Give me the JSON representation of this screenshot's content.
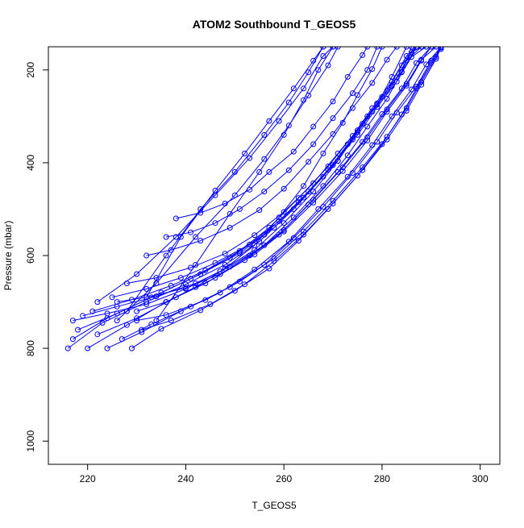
{
  "chart_data": {
    "type": "line",
    "title": "ATOM2 Southbound T_GEOS5",
    "xlabel": "T_GEOS5",
    "ylabel": "Pressure (mbar)",
    "xlim": [
      212,
      304
    ],
    "ylim": [
      1050,
      150
    ],
    "y_reversed": true,
    "x_ticks": [
      220,
      240,
      260,
      280,
      300
    ],
    "y_ticks": [
      200,
      400,
      600,
      800,
      1000
    ],
    "marker": "open-circle",
    "color": "#0000ff",
    "grid": false,
    "legend": "none",
    "series": [
      {
        "points": [
          [
            216,
            800
          ],
          [
            223,
            745
          ],
          [
            232,
            700
          ],
          [
            240,
            662
          ],
          [
            248,
            620
          ],
          [
            255,
            570
          ],
          [
            262,
            500
          ],
          [
            268,
            430
          ],
          [
            273,
            360
          ],
          [
            277,
            300
          ],
          [
            281,
            245
          ],
          [
            284,
            190
          ],
          [
            287,
            150
          ]
        ]
      },
      {
        "points": [
          [
            217,
            780
          ],
          [
            224,
            735
          ],
          [
            233,
            690
          ],
          [
            241,
            650
          ],
          [
            249,
            605
          ],
          [
            256,
            555
          ],
          [
            263,
            485
          ],
          [
            269,
            415
          ],
          [
            274,
            350
          ],
          [
            278,
            290
          ],
          [
            282,
            235
          ],
          [
            285,
            180
          ],
          [
            288,
            150
          ]
        ]
      },
      {
        "points": [
          [
            218,
            760
          ],
          [
            226,
            725
          ],
          [
            235,
            680
          ],
          [
            243,
            640
          ],
          [
            251,
            595
          ],
          [
            258,
            540
          ],
          [
            264,
            475
          ],
          [
            270,
            405
          ],
          [
            275,
            340
          ],
          [
            279,
            280
          ],
          [
            283,
            225
          ],
          [
            286,
            172
          ],
          [
            289,
            150
          ]
        ]
      },
      {
        "points": [
          [
            220,
            800
          ],
          [
            228,
            750
          ],
          [
            236,
            700
          ],
          [
            244,
            660
          ],
          [
            252,
            610
          ],
          [
            259,
            555
          ],
          [
            265,
            490
          ],
          [
            271,
            420
          ],
          [
            276,
            355
          ],
          [
            280,
            295
          ],
          [
            284,
            240
          ],
          [
            287,
            185
          ],
          [
            290,
            150
          ]
        ]
      },
      {
        "points": [
          [
            222,
            770
          ],
          [
            230,
            735
          ],
          [
            238,
            690
          ],
          [
            246,
            648
          ],
          [
            253,
            600
          ],
          [
            260,
            545
          ],
          [
            266,
            480
          ],
          [
            272,
            410
          ],
          [
            277,
            345
          ],
          [
            281,
            285
          ],
          [
            285,
            230
          ],
          [
            288,
            178
          ],
          [
            291,
            150
          ]
        ]
      },
      {
        "points": [
          [
            224,
            800
          ],
          [
            231,
            765
          ],
          [
            239,
            720
          ],
          [
            247,
            680
          ],
          [
            254,
            630
          ],
          [
            261,
            570
          ],
          [
            267,
            500
          ],
          [
            273,
            430
          ],
          [
            278,
            362
          ],
          [
            282,
            300
          ],
          [
            286,
            242
          ],
          [
            289,
            188
          ],
          [
            292,
            150
          ]
        ]
      },
      {
        "points": [
          [
            227,
            780
          ],
          [
            233,
            748
          ],
          [
            241,
            710
          ],
          [
            249,
            668
          ],
          [
            256,
            620
          ],
          [
            262,
            562
          ],
          [
            268,
            495
          ],
          [
            274,
            422
          ],
          [
            279,
            355
          ],
          [
            283,
            292
          ],
          [
            287,
            236
          ],
          [
            290,
            180
          ],
          [
            292,
            155
          ]
        ]
      },
      {
        "points": [
          [
            229,
            800
          ],
          [
            235,
            758
          ],
          [
            243,
            718
          ],
          [
            250,
            676
          ],
          [
            257,
            628
          ],
          [
            263,
            568
          ],
          [
            269,
            500
          ],
          [
            275,
            428
          ],
          [
            280,
            360
          ],
          [
            284,
            296
          ],
          [
            287,
            240
          ],
          [
            290,
            185
          ],
          [
            292,
            150
          ]
        ]
      },
      {
        "points": [
          [
            231,
            760
          ],
          [
            237,
            740
          ],
          [
            245,
            705
          ],
          [
            252,
            662
          ],
          [
            258,
            612
          ],
          [
            264,
            555
          ],
          [
            270,
            488
          ],
          [
            276,
            416
          ],
          [
            281,
            350
          ],
          [
            285,
            288
          ],
          [
            288,
            232
          ],
          [
            291,
            176
          ],
          [
            292,
            152
          ]
        ]
      },
      {
        "points": [
          [
            230,
            740
          ],
          [
            236,
            728
          ],
          [
            244,
            696
          ],
          [
            251,
            656
          ],
          [
            258,
            606
          ],
          [
            264,
            548
          ],
          [
            270,
            482
          ],
          [
            276,
            410
          ],
          [
            281,
            344
          ],
          [
            285,
            282
          ],
          [
            288,
            226
          ],
          [
            291,
            172
          ],
          [
            292,
            150
          ]
        ]
      },
      {
        "points": [
          [
            226,
            700
          ],
          [
            232,
            690
          ],
          [
            240,
            670
          ],
          [
            247,
            640
          ],
          [
            254,
            598
          ],
          [
            260,
            548
          ],
          [
            266,
            486
          ],
          [
            272,
            418
          ],
          [
            277,
            352
          ],
          [
            281,
            290
          ],
          [
            285,
            234
          ],
          [
            288,
            180
          ],
          [
            290,
            150
          ]
        ]
      },
      {
        "points": [
          [
            219,
            730
          ],
          [
            226,
            710
          ],
          [
            234,
            688
          ],
          [
            242,
            660
          ],
          [
            249,
            624
          ],
          [
            256,
            578
          ],
          [
            262,
            518
          ],
          [
            268,
            450
          ],
          [
            273,
            384
          ],
          [
            277,
            322
          ],
          [
            281,
            262
          ],
          [
            284,
            205
          ],
          [
            286,
            150
          ]
        ]
      },
      {
        "points": [
          [
            217,
            740
          ],
          [
            224,
            725
          ],
          [
            232,
            705
          ],
          [
            240,
            672
          ],
          [
            247,
            634
          ],
          [
            254,
            588
          ],
          [
            260,
            530
          ],
          [
            266,
            462
          ],
          [
            271,
            396
          ],
          [
            275,
            334
          ],
          [
            279,
            275
          ],
          [
            282,
            215
          ],
          [
            285,
            150
          ]
        ]
      },
      {
        "points": [
          [
            221,
            720
          ],
          [
            229,
            695
          ],
          [
            237,
            665
          ],
          [
            244,
            632
          ],
          [
            251,
            590
          ],
          [
            257,
            540
          ],
          [
            263,
            476
          ],
          [
            269,
            408
          ],
          [
            274,
            342
          ],
          [
            278,
            282
          ],
          [
            282,
            225
          ],
          [
            285,
            170
          ],
          [
            287,
            150
          ]
        ]
      },
      {
        "points": [
          [
            225,
            690
          ],
          [
            232,
            672
          ],
          [
            239,
            648
          ],
          [
            246,
            616
          ],
          [
            253,
            576
          ],
          [
            259,
            526
          ],
          [
            265,
            462
          ],
          [
            271,
            396
          ],
          [
            275,
            330
          ],
          [
            279,
            272
          ],
          [
            283,
            216
          ],
          [
            286,
            162
          ],
          [
            288,
            150
          ]
        ]
      },
      {
        "points": [
          [
            228,
            660
          ],
          [
            234,
            648
          ],
          [
            241,
            626
          ],
          [
            248,
            596
          ],
          [
            254,
            556
          ],
          [
            260,
            506
          ],
          [
            266,
            444
          ],
          [
            271,
            380
          ],
          [
            276,
            316
          ],
          [
            280,
            258
          ],
          [
            284,
            204
          ],
          [
            287,
            150
          ]
        ]
      },
      {
        "points": [
          [
            232,
            600
          ],
          [
            237,
            588
          ],
          [
            243,
            568
          ],
          [
            249,
            540
          ],
          [
            255,
            502
          ],
          [
            260,
            456
          ],
          [
            265,
            398
          ],
          [
            270,
            338
          ],
          [
            274,
            282
          ],
          [
            278,
            228
          ],
          [
            281,
            178
          ],
          [
            283,
            150
          ]
        ]
      },
      {
        "points": [
          [
            236,
            560
          ],
          [
            241,
            550
          ],
          [
            246,
            530
          ],
          [
            251,
            500
          ],
          [
            256,
            462
          ],
          [
            261,
            416
          ],
          [
            266,
            360
          ],
          [
            270,
            304
          ],
          [
            274,
            250
          ],
          [
            277,
            200
          ],
          [
            279,
            150
          ]
        ]
      },
      {
        "points": [
          [
            238,
            520
          ],
          [
            243,
            508
          ],
          [
            248,
            488
          ],
          [
            253,
            458
          ],
          [
            257,
            420
          ],
          [
            262,
            376
          ],
          [
            266,
            322
          ],
          [
            270,
            268
          ],
          [
            273,
            215
          ],
          [
            276,
            168
          ],
          [
            277,
            150
          ]
        ]
      },
      {
        "points": [
          [
            230,
            720
          ],
          [
            236,
            700
          ],
          [
            242,
            668
          ],
          [
            248,
            628
          ],
          [
            254,
            578
          ],
          [
            259,
            518
          ],
          [
            264,
            450
          ],
          [
            268,
            380
          ],
          [
            272,
            314
          ],
          [
            275,
            254
          ],
          [
            278,
            198
          ],
          [
            280,
            150
          ]
        ]
      },
      {
        "points": [
          [
            222,
            700
          ],
          [
            230,
            640
          ],
          [
            238,
            560
          ],
          [
            246,
            470
          ],
          [
            253,
            390
          ],
          [
            259,
            310
          ],
          [
            264,
            240
          ],
          [
            268,
            170
          ],
          [
            270,
            150
          ]
        ]
      },
      {
        "points": [
          [
            228,
            720
          ],
          [
            236,
            600
          ],
          [
            243,
            500
          ],
          [
            250,
            420
          ],
          [
            256,
            340
          ],
          [
            261,
            270
          ],
          [
            265,
            205
          ],
          [
            268,
            150
          ]
        ]
      },
      {
        "points": [
          [
            232,
            690
          ],
          [
            239,
            560
          ],
          [
            246,
            460
          ],
          [
            252,
            380
          ],
          [
            257,
            310
          ],
          [
            262,
            240
          ],
          [
            266,
            180
          ],
          [
            268,
            150
          ]
        ]
      },
      {
        "points": [
          [
            234,
            740
          ],
          [
            242,
            620
          ],
          [
            249,
            510
          ],
          [
            255,
            420
          ],
          [
            260,
            340
          ],
          [
            264,
            265
          ],
          [
            267,
            200
          ],
          [
            270,
            150
          ]
        ]
      },
      {
        "points": [
          [
            226,
            740
          ],
          [
            234,
            660
          ],
          [
            242,
            560
          ],
          [
            250,
            470
          ],
          [
            256,
            392
          ],
          [
            261,
            320
          ],
          [
            265,
            255
          ],
          [
            269,
            190
          ],
          [
            271,
            150
          ]
        ]
      }
    ]
  }
}
